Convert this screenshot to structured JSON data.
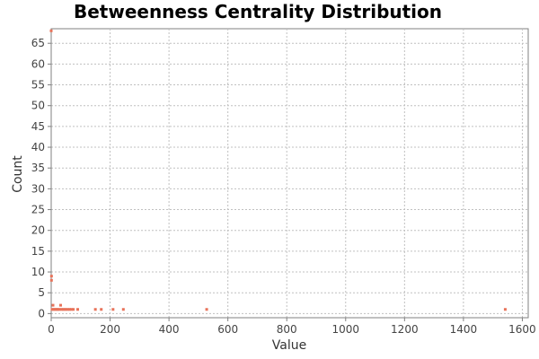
{
  "chart_data": {
    "type": "scatter",
    "title": "Betweenness Centrality Distribution",
    "xlabel": "Value",
    "ylabel": "Count",
    "xlim": [
      0,
      1620
    ],
    "ylim": [
      -1,
      68.5
    ],
    "x_ticks": [
      0,
      200,
      400,
      600,
      800,
      1000,
      1200,
      1400,
      1600
    ],
    "y_ticks": [
      0,
      5,
      10,
      15,
      20,
      25,
      30,
      35,
      40,
      45,
      50,
      55,
      60,
      65
    ],
    "grid": true,
    "legend": "none",
    "marker_color": "#e8735a",
    "points": [
      {
        "x": 0,
        "y": 68
      },
      {
        "x": 1,
        "y": 9
      },
      {
        "x": 1,
        "y": 8
      },
      {
        "x": 3,
        "y": 1
      },
      {
        "x": 6,
        "y": 2
      },
      {
        "x": 8,
        "y": 1
      },
      {
        "x": 12,
        "y": 1
      },
      {
        "x": 16,
        "y": 1
      },
      {
        "x": 20,
        "y": 1
      },
      {
        "x": 24,
        "y": 1
      },
      {
        "x": 28,
        "y": 1
      },
      {
        "x": 32,
        "y": 2
      },
      {
        "x": 35,
        "y": 1
      },
      {
        "x": 40,
        "y": 1
      },
      {
        "x": 45,
        "y": 1
      },
      {
        "x": 50,
        "y": 1
      },
      {
        "x": 56,
        "y": 1
      },
      {
        "x": 62,
        "y": 1
      },
      {
        "x": 68,
        "y": 1
      },
      {
        "x": 75,
        "y": 1
      },
      {
        "x": 90,
        "y": 1
      },
      {
        "x": 150,
        "y": 1
      },
      {
        "x": 170,
        "y": 1
      },
      {
        "x": 210,
        "y": 1
      },
      {
        "x": 245,
        "y": 1
      },
      {
        "x": 528,
        "y": 1
      },
      {
        "x": 1542,
        "y": 1
      }
    ]
  }
}
